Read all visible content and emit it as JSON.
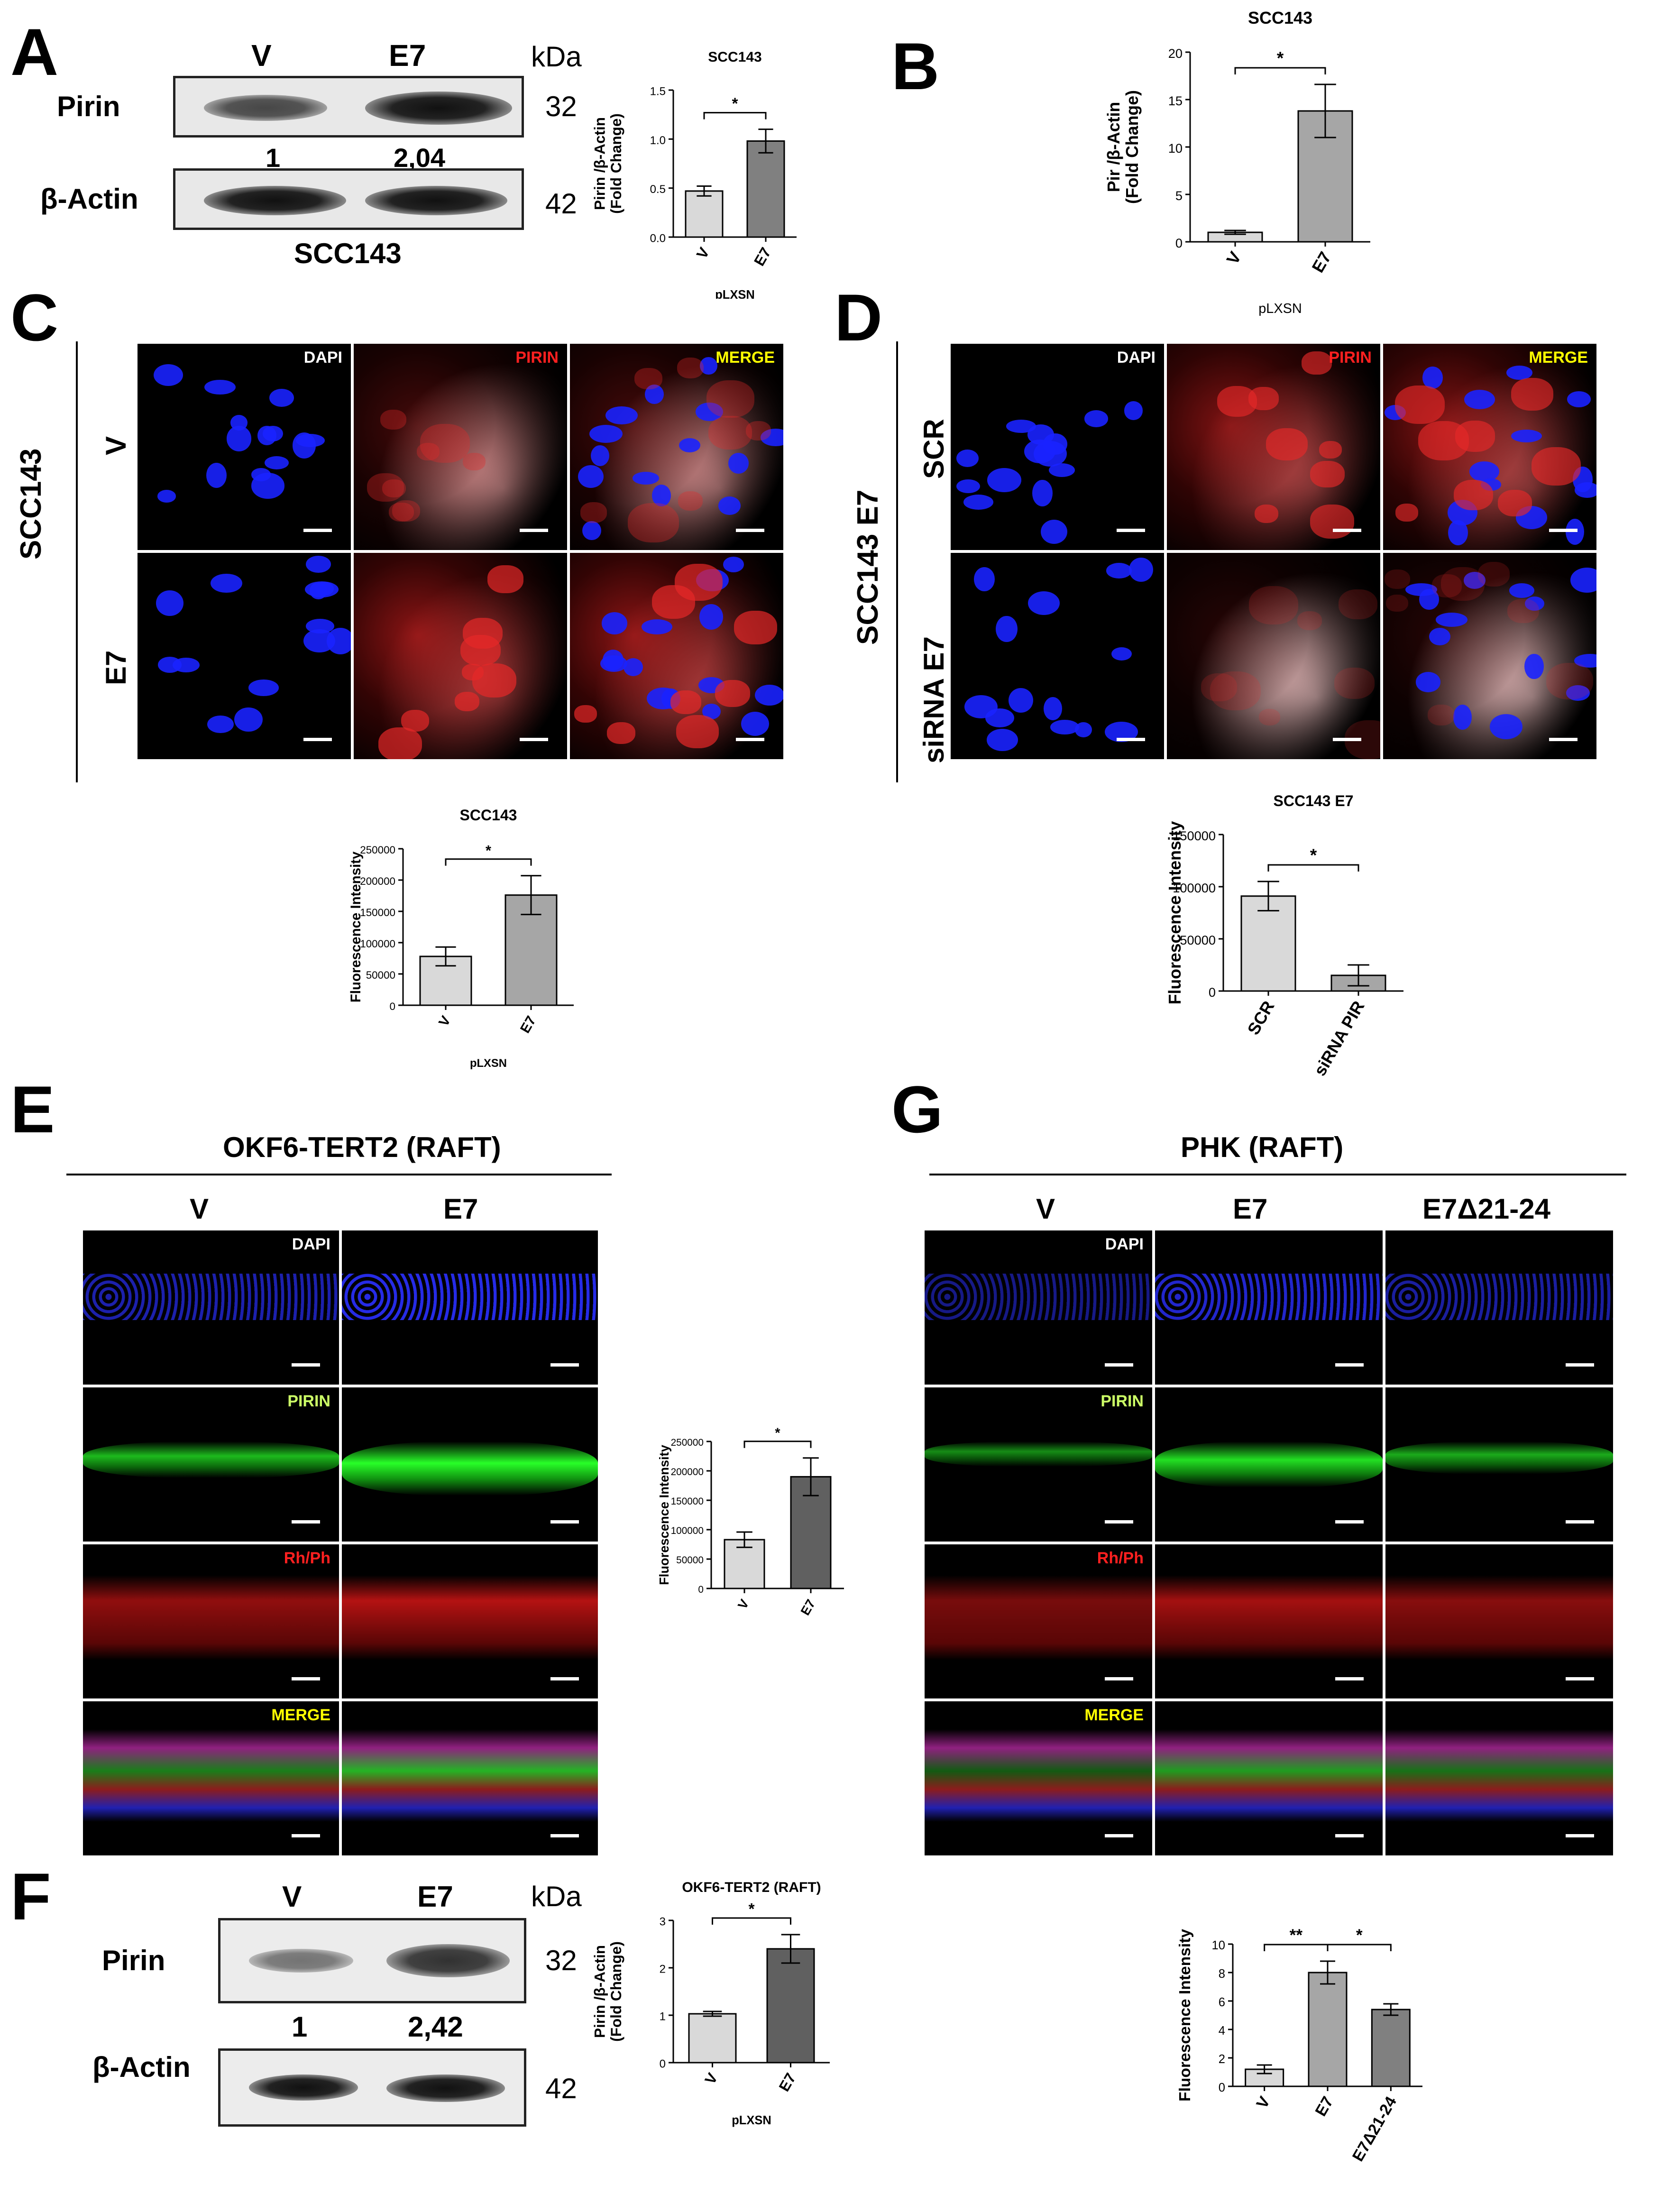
{
  "panels": {
    "A": {
      "letter": "A",
      "lanes": [
        "V",
        "E7"
      ],
      "kda_label": "kDa",
      "rows": [
        {
          "name": "Pirin",
          "kda": "32"
        },
        {
          "name": "β-Actin",
          "kda": "42"
        }
      ],
      "quant": [
        "1",
        "2,04"
      ],
      "cell_line": "SCC143"
    },
    "B": {
      "letter": "B"
    },
    "C": {
      "letter": "C",
      "side_label": "SCC143",
      "row_labels": [
        "V",
        "E7"
      ],
      "channels": [
        "DAPI",
        "PIRIN",
        "MERGE"
      ]
    },
    "D": {
      "letter": "D",
      "side_label": "SCC143 E7",
      "row_labels": [
        "SCR",
        "siRNA E7"
      ],
      "channels": [
        "DAPI",
        "PIRIN",
        "MERGE"
      ]
    },
    "E": {
      "letter": "E",
      "title": "OKF6-TERT2 (RAFT)",
      "columns": [
        "V",
        "E7"
      ],
      "channels": [
        "DAPI",
        "PIRIN",
        "Rh/Ph",
        "MERGE"
      ]
    },
    "F": {
      "letter": "F",
      "lanes": [
        "V",
        "E7"
      ],
      "kda_label": "kDa",
      "rows": [
        {
          "name": "Pirin",
          "kda": "32"
        },
        {
          "name": "β-Actin",
          "kda": "42"
        }
      ],
      "quant": [
        "1",
        "2,42"
      ]
    },
    "G": {
      "letter": "G",
      "title": "PHK (RAFT)",
      "columns": [
        "V",
        "E7",
        "E7Δ21-24"
      ],
      "channels": [
        "DAPI",
        "PIRIN",
        "Rh/Ph",
        "MERGE"
      ]
    }
  },
  "chart_data": [
    {
      "id": "A",
      "type": "bar",
      "title": "SCC143",
      "categories": [
        "V",
        "E7"
      ],
      "values": [
        0.47,
        0.98
      ],
      "errors": [
        0.05,
        0.12
      ],
      "xlabel": "pLXSN",
      "ylabel": "Pirin /β-Actin\n(Fold Change)",
      "ylim": [
        0,
        1.5
      ],
      "yticks": [
        "0.0",
        "0.5",
        "1.0",
        "1.5"
      ],
      "colors": [
        "#d9d9d9",
        "#808080"
      ],
      "sig": [
        "*"
      ]
    },
    {
      "id": "B",
      "type": "bar",
      "title": "SCC143",
      "categories": [
        "V",
        "E7"
      ],
      "values": [
        1.0,
        13.8
      ],
      "errors": [
        0.2,
        2.8
      ],
      "xlabel": "pLXSN",
      "ylabel": "Pir /β-Actin\n(Fold Change)",
      "ylim": [
        0,
        20
      ],
      "yticks": [
        "0",
        "5",
        "10",
        "15",
        "20"
      ],
      "colors": [
        "#d9d9d9",
        "#a6a6a6"
      ],
      "sig": [
        "*"
      ]
    },
    {
      "id": "C",
      "type": "bar",
      "title": "SCC143",
      "categories": [
        "V",
        "E7"
      ],
      "values": [
        78000,
        176000
      ],
      "errors": [
        15000,
        31000
      ],
      "xlabel": "pLXSN",
      "ylabel": "Fluorescence Intensity",
      "ylim": [
        0,
        250000
      ],
      "yticks": [
        "0",
        "50000",
        "100000",
        "150000",
        "200000",
        "250000"
      ],
      "colors": [
        "#d9d9d9",
        "#a6a6a6"
      ],
      "sig": [
        "*"
      ]
    },
    {
      "id": "D",
      "type": "bar",
      "title": "SCC143 E7",
      "categories": [
        "SCR",
        "siRNA PIR"
      ],
      "values": [
        91000,
        15000
      ],
      "errors": [
        14000,
        10000
      ],
      "xlabel": "",
      "ylabel": "Fluorescence Intensity",
      "ylim": [
        0,
        150000
      ],
      "yticks": [
        "0",
        "50000",
        "100000",
        "150000"
      ],
      "colors": [
        "#d9d9d9",
        "#a6a6a6"
      ],
      "sig": [
        "*"
      ]
    },
    {
      "id": "E",
      "type": "bar",
      "title": "",
      "categories": [
        "V",
        "E7"
      ],
      "values": [
        83000,
        190000
      ],
      "errors": [
        13000,
        32000
      ],
      "xlabel": "",
      "ylabel": "Fluorescence Intensity",
      "ylim": [
        0,
        250000
      ],
      "yticks": [
        "0",
        "50000",
        "100000",
        "150000",
        "200000",
        "250000"
      ],
      "colors": [
        "#d9d9d9",
        "#606060"
      ],
      "sig": [
        "*"
      ]
    },
    {
      "id": "F",
      "type": "bar",
      "title": "OKF6-TERT2  (RAFT)",
      "categories": [
        "V",
        "E7"
      ],
      "values": [
        1.03,
        2.4
      ],
      "errors": [
        0.05,
        0.3
      ],
      "xlabel": "pLXSN",
      "ylabel": "Pirin /β-Actin\n(Fold Change)",
      "ylim": [
        0,
        3
      ],
      "yticks": [
        "0",
        "1",
        "2",
        "3"
      ],
      "colors": [
        "#d9d9d9",
        "#606060"
      ],
      "sig": [
        "*"
      ]
    },
    {
      "id": "G",
      "type": "bar",
      "title": "",
      "categories": [
        "V",
        "E7",
        "E7Δ21-24"
      ],
      "values": [
        1.2,
        8.0,
        5.4
      ],
      "errors": [
        0.3,
        0.8,
        0.4
      ],
      "xlabel": "",
      "ylabel": "Fluorescence Intensity",
      "ylim": [
        0,
        10
      ],
      "yticks": [
        "0",
        "2",
        "4",
        "6",
        "8",
        "10"
      ],
      "colors": [
        "#d9d9d9",
        "#a6a6a6",
        "#808080"
      ],
      "sig": [
        "**",
        "*"
      ]
    }
  ]
}
